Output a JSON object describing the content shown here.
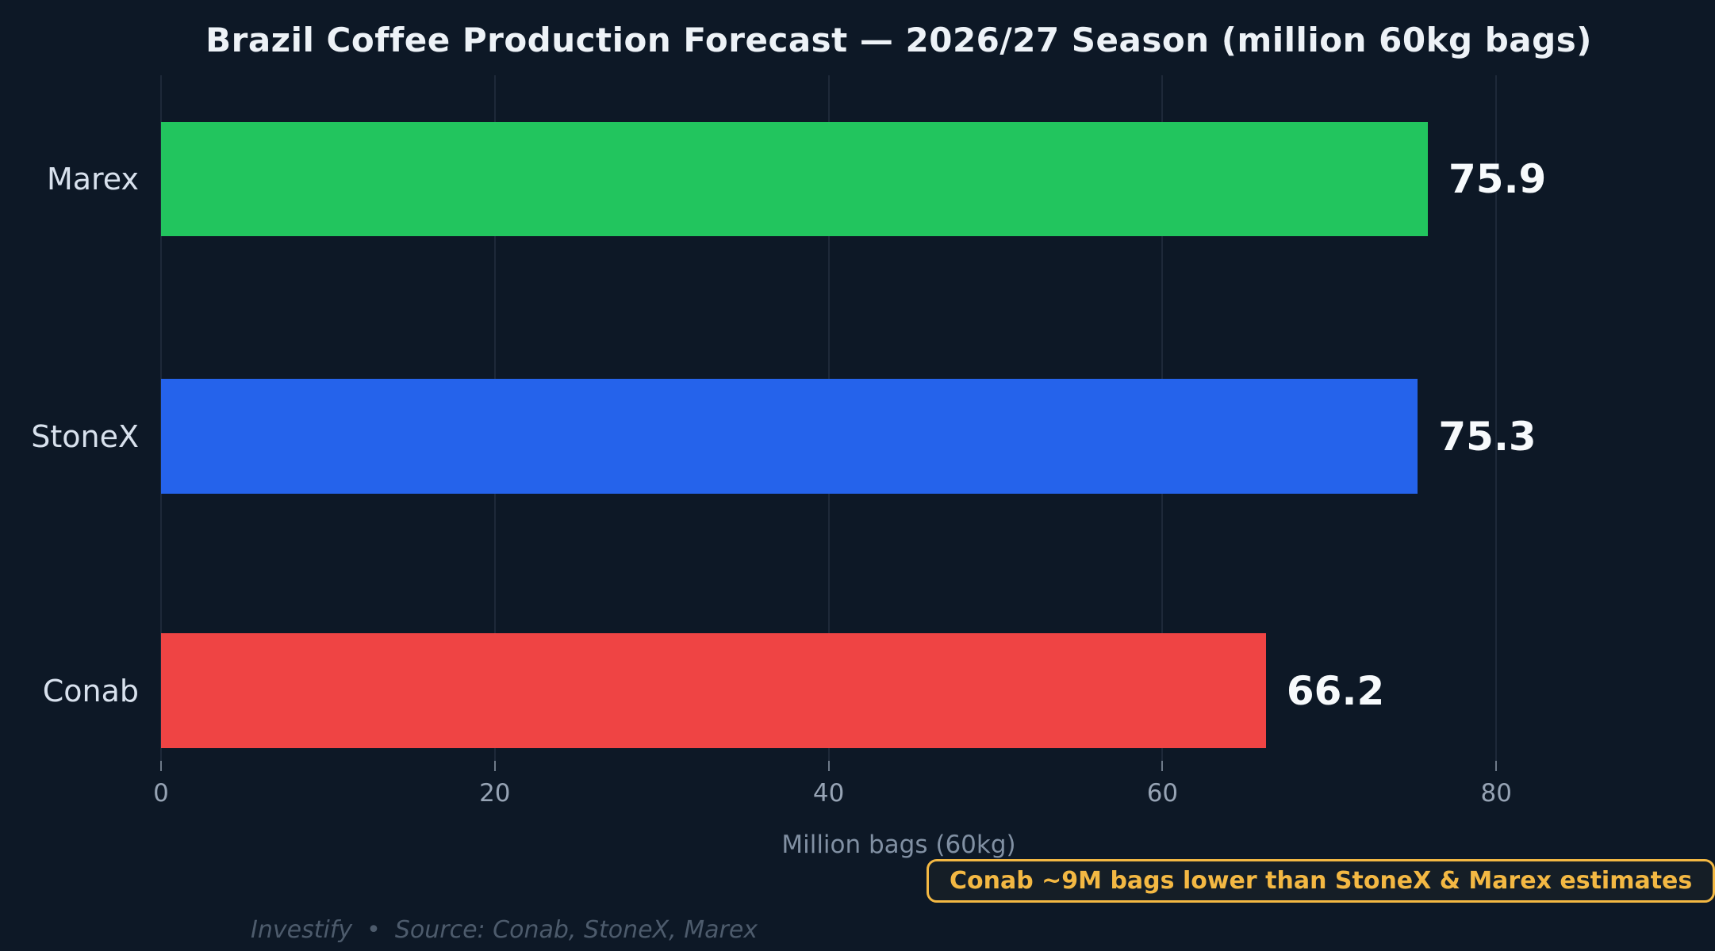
{
  "chart_data": {
    "type": "bar",
    "orientation": "horizontal",
    "title": "Brazil Coffee Production Forecast — 2026/27 Season (million 60kg bags)",
    "categories": [
      "Marex",
      "StoneX",
      "Conab"
    ],
    "values": [
      75.9,
      75.3,
      66.2
    ],
    "bar_colors": [
      "#22c55e",
      "#2563eb",
      "#ef4444"
    ],
    "xlabel": "Million bags (60kg)",
    "xlim": [
      0,
      88.4
    ],
    "xticks": [
      0,
      20,
      40,
      60,
      80
    ],
    "grid": "vertical-only",
    "legend": "none",
    "annotation": {
      "text": "Conab ~9M bags lower than StoneX & Marex estimates"
    },
    "footer": {
      "brand": "Investify",
      "separator": "•",
      "source": "Source: Conab, StoneX, Marex"
    },
    "theme": {
      "background": "#0d1826",
      "title_color": "#edf2f7",
      "label_color": "#d8e1ed",
      "value_color": "#f7fafc",
      "tick_color": "#96a3b4",
      "axis_label_color": "#8190a3",
      "footer_color": "#4d5b6c",
      "annotation_color": "#f3b843",
      "grid_color": "rgba(148,163,184,0.13)",
      "tickmark_color": "rgba(163,175,190,0.65)"
    }
  }
}
